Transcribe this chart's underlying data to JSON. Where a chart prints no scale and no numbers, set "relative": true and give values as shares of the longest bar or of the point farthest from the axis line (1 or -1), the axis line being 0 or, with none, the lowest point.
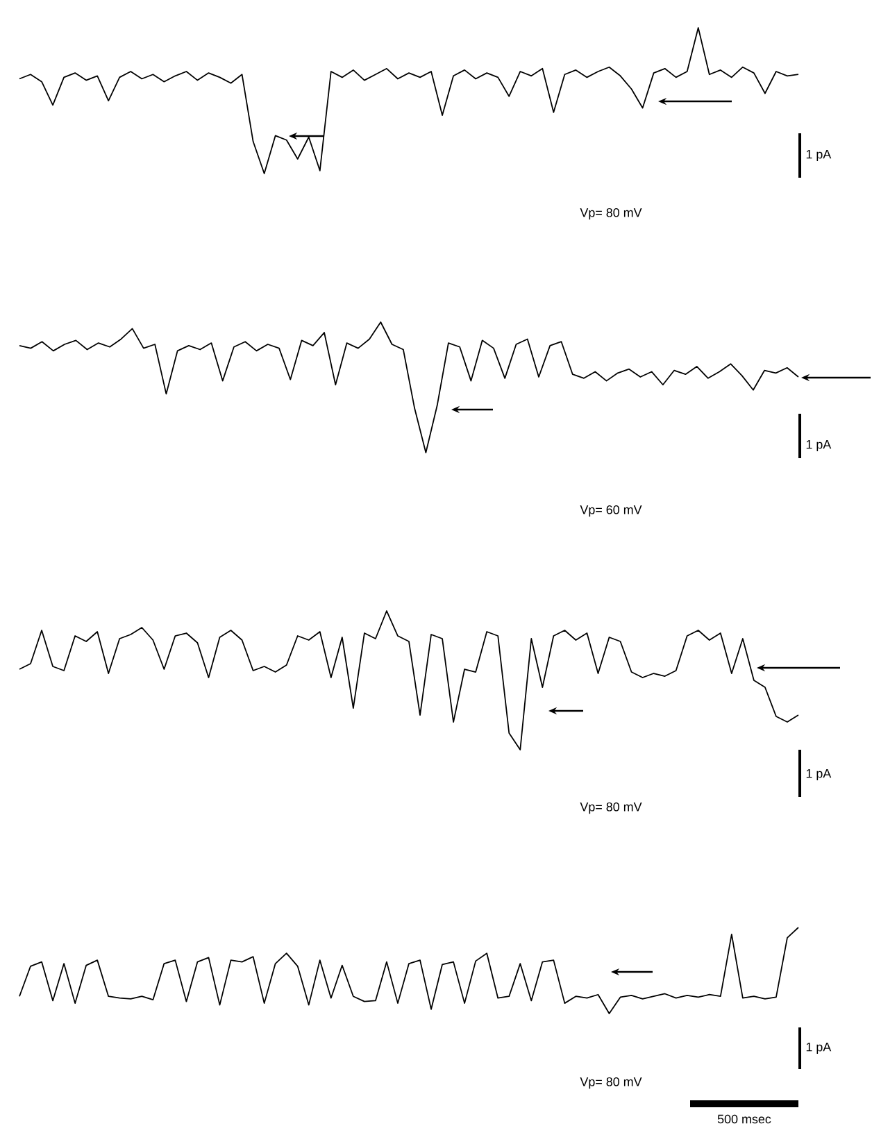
{
  "chart_data": [
    {
      "type": "line",
      "relative": true,
      "categories": [
        null,
        null,
        null,
        null,
        null,
        null,
        null,
        null,
        null,
        null,
        null,
        null,
        null,
        null,
        null,
        null,
        null,
        null,
        null,
        null,
        null,
        null,
        null,
        null,
        null,
        null,
        null,
        null,
        null,
        null,
        null,
        null,
        null,
        null,
        null,
        null,
        null,
        null,
        null,
        null,
        null,
        null,
        null,
        null,
        null,
        null,
        null,
        null,
        null,
        null,
        null,
        null,
        null,
        null,
        null,
        null,
        null,
        null,
        null,
        null,
        null,
        null,
        null,
        null,
        null,
        null,
        null,
        null,
        null,
        null,
        null
      ],
      "series": [
        {
          "color": "#000000",
          "values": [
            0.65,
            0.68,
            0.63,
            0.47,
            0.66,
            0.69,
            0.64,
            0.67,
            0.5,
            0.66,
            0.7,
            0.65,
            0.68,
            0.63,
            0.67,
            0.7,
            0.64,
            0.69,
            0.66,
            0.62,
            0.68,
            0.22,
            0.0,
            0.26,
            0.23,
            0.1,
            0.25,
            0.02,
            0.7,
            0.66,
            0.71,
            0.64,
            0.68,
            0.72,
            0.65,
            0.69,
            0.66,
            0.7,
            0.4,
            0.67,
            0.71,
            0.65,
            0.69,
            0.66,
            0.53,
            0.7,
            0.67,
            0.72,
            0.42,
            0.68,
            0.71,
            0.66,
            0.7,
            0.73,
            0.67,
            0.58,
            0.45,
            0.69,
            0.72,
            0.66,
            0.7,
            1.0,
            0.68,
            0.71,
            0.66,
            0.73,
            0.69,
            0.55,
            0.7,
            0.67,
            0.68
          ]
        }
      ],
      "annotations": [
        "1 pA",
        "Vp= 80 mV"
      ]
    },
    {
      "type": "line",
      "relative": true,
      "categories": [
        null,
        null,
        null,
        null,
        null,
        null,
        null,
        null,
        null,
        null,
        null,
        null,
        null,
        null,
        null,
        null,
        null,
        null,
        null,
        null,
        null,
        null,
        null,
        null,
        null,
        null,
        null,
        null,
        null,
        null,
        null,
        null,
        null,
        null,
        null,
        null,
        null,
        null,
        null,
        null,
        null,
        null,
        null,
        null,
        null,
        null,
        null,
        null,
        null,
        null,
        null,
        null,
        null,
        null,
        null,
        null,
        null,
        null,
        null,
        null,
        null,
        null,
        null,
        null,
        null,
        null,
        null,
        null,
        null,
        null
      ],
      "series": [
        {
          "color": "#000000",
          "values": [
            0.82,
            0.8,
            0.85,
            0.78,
            0.83,
            0.86,
            0.79,
            0.84,
            0.81,
            0.87,
            0.95,
            0.8,
            0.83,
            0.45,
            0.78,
            0.82,
            0.79,
            0.84,
            0.55,
            0.81,
            0.85,
            0.78,
            0.83,
            0.8,
            0.56,
            0.86,
            0.82,
            0.92,
            0.52,
            0.84,
            0.8,
            0.87,
            1.0,
            0.83,
            0.79,
            0.34,
            0.0,
            0.36,
            0.84,
            0.81,
            0.55,
            0.86,
            0.8,
            0.57,
            0.83,
            0.87,
            0.58,
            0.82,
            0.85,
            0.6,
            0.57,
            0.62,
            0.55,
            0.61,
            0.64,
            0.58,
            0.62,
            0.52,
            0.63,
            0.6,
            0.66,
            0.57,
            0.62,
            0.68,
            0.59,
            0.48,
            0.63,
            0.61,
            0.65,
            0.58
          ]
        }
      ],
      "annotations": [
        "1 pA",
        "Vp= 60 mV"
      ]
    },
    {
      "type": "line",
      "relative": true,
      "categories": [
        null,
        null,
        null,
        null,
        null,
        null,
        null,
        null,
        null,
        null,
        null,
        null,
        null,
        null,
        null,
        null,
        null,
        null,
        null,
        null,
        null,
        null,
        null,
        null,
        null,
        null,
        null,
        null,
        null,
        null,
        null,
        null,
        null,
        null,
        null,
        null,
        null,
        null,
        null,
        null,
        null,
        null,
        null,
        null,
        null,
        null,
        null,
        null,
        null,
        null,
        null,
        null,
        null,
        null,
        null,
        null,
        null,
        null,
        null,
        null,
        null,
        null,
        null,
        null,
        null,
        null,
        null,
        null,
        null,
        null,
        null
      ],
      "series": [
        {
          "color": "#000000",
          "values": [
            0.58,
            0.62,
            0.86,
            0.6,
            0.57,
            0.82,
            0.78,
            0.85,
            0.55,
            0.8,
            0.83,
            0.88,
            0.79,
            0.58,
            0.82,
            0.84,
            0.77,
            0.52,
            0.81,
            0.86,
            0.79,
            0.57,
            0.6,
            0.56,
            0.61,
            0.82,
            0.79,
            0.85,
            0.52,
            0.81,
            0.3,
            0.84,
            0.8,
            1.0,
            0.82,
            0.78,
            0.25,
            0.83,
            0.8,
            0.2,
            0.58,
            0.56,
            0.85,
            0.82,
            0.12,
            0.0,
            0.8,
            0.45,
            0.82,
            0.86,
            0.79,
            0.84,
            0.55,
            0.81,
            0.78,
            0.56,
            0.52,
            0.55,
            0.53,
            0.57,
            0.82,
            0.86,
            0.79,
            0.84,
            0.55,
            0.8,
            0.5,
            0.45,
            0.24,
            0.2,
            0.25
          ]
        }
      ],
      "annotations": [
        "1 pA",
        "Vp= 80 mV"
      ]
    },
    {
      "type": "line",
      "relative": true,
      "categories": [
        null,
        null,
        null,
        null,
        null,
        null,
        null,
        null,
        null,
        null,
        null,
        null,
        null,
        null,
        null,
        null,
        null,
        null,
        null,
        null,
        null,
        null,
        null,
        null,
        null,
        null,
        null,
        null,
        null,
        null,
        null,
        null,
        null,
        null,
        null,
        null,
        null,
        null,
        null,
        null,
        null,
        null,
        null,
        null,
        null,
        null,
        null,
        null,
        null,
        null,
        null,
        null,
        null,
        null,
        null,
        null,
        null,
        null,
        null,
        null,
        null,
        null,
        null,
        null,
        null,
        null,
        null,
        null,
        null,
        null,
        null
      ],
      "series": [
        {
          "color": "#000000",
          "values": [
            0.2,
            0.55,
            0.6,
            0.15,
            0.58,
            0.12,
            0.56,
            0.62,
            0.2,
            0.18,
            0.17,
            0.2,
            0.16,
            0.58,
            0.62,
            0.14,
            0.6,
            0.65,
            0.1,
            0.62,
            0.6,
            0.66,
            0.12,
            0.58,
            0.7,
            0.55,
            0.1,
            0.62,
            0.18,
            0.56,
            0.2,
            0.14,
            0.15,
            0.6,
            0.12,
            0.58,
            0.62,
            0.05,
            0.57,
            0.6,
            0.12,
            0.61,
            0.7,
            0.18,
            0.2,
            0.58,
            0.15,
            0.6,
            0.62,
            0.12,
            0.2,
            0.18,
            0.22,
            0.0,
            0.19,
            0.21,
            0.17,
            0.2,
            0.23,
            0.18,
            0.21,
            0.19,
            0.22,
            0.2,
            0.92,
            0.18,
            0.2,
            0.17,
            0.19,
            0.88,
            1.0
          ]
        }
      ],
      "annotations": [
        "1 pA",
        "Vp= 80 mV",
        "500 msec"
      ]
    }
  ]
}
